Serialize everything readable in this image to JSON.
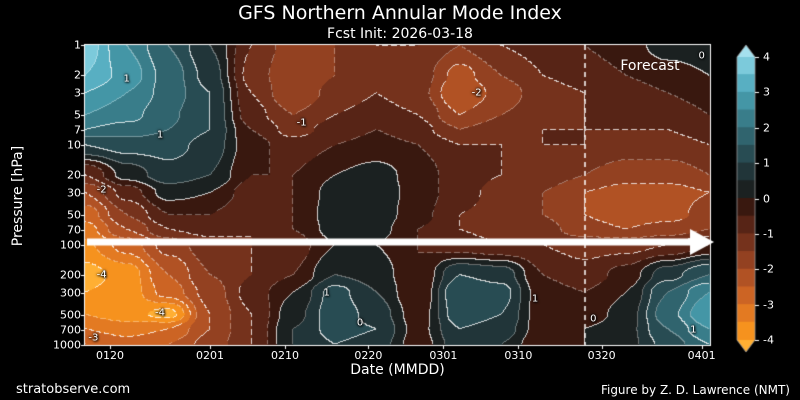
{
  "title": "GFS Northern Annular Mode Index",
  "subtitle": "Fcst Init: 2026-03-18",
  "footer": {
    "left": "stratobserve.com",
    "right": "Figure by Z. D. Lawrence (NMT)"
  },
  "axes": {
    "x_label": "Date (MMDD)",
    "y_label": "Pressure [hPa]",
    "x_ticks": [
      {
        "label": "0120",
        "day": 3
      },
      {
        "label": "0201",
        "day": 15
      },
      {
        "label": "0210",
        "day": 24
      },
      {
        "label": "0220",
        "day": 34
      },
      {
        "label": "0301",
        "day": 43
      },
      {
        "label": "0310",
        "day": 52
      },
      {
        "label": "0320",
        "day": 62
      },
      {
        "label": "0401",
        "day": 74
      }
    ],
    "y_ticks": [
      1,
      2,
      3,
      5,
      7,
      10,
      20,
      30,
      50,
      70,
      100,
      200,
      300,
      500,
      700,
      1000
    ]
  },
  "forecast": {
    "label": "Forecast",
    "init_day": 60
  },
  "arrow": {
    "pressure": 100
  },
  "colorbar": {
    "ticks": [
      4,
      3,
      2,
      1,
      0,
      -1,
      -2,
      -3,
      -4
    ],
    "min": -4,
    "max": 4
  },
  "colormap": {
    "band_edges": [
      -4,
      -3.5,
      -3,
      -2.5,
      -2,
      -1.5,
      -1,
      -0.5,
      0,
      0.5,
      1,
      1.5,
      2,
      2.5,
      3,
      3.5,
      4
    ],
    "band_colors": [
      "#ffaf33",
      "#f6921e",
      "#e37a22",
      "#cc6424",
      "#b15224",
      "#934121",
      "#75321c",
      "#572416",
      "#39180f",
      "#1b2121",
      "#213539",
      "#284c53",
      "#30646e",
      "#397d8a",
      "#4496a6",
      "#58afc2",
      "#7ccadb",
      "#a5e0ee"
    ]
  },
  "chart_data": {
    "type": "heatmap",
    "title": "GFS Northern Annular Mode Index",
    "x_start_date": "0117",
    "x_range_days": [
      0,
      75
    ],
    "y_scale": "log",
    "y_range_hpa": [
      1,
      1000
    ],
    "value_range": [
      -4,
      4
    ],
    "x_days": [
      0,
      5,
      10,
      15,
      20,
      25,
      30,
      35,
      40,
      45,
      50,
      55,
      60,
      65,
      70,
      75
    ],
    "pressure_levels": [
      1,
      2,
      3,
      5,
      7,
      10,
      20,
      30,
      50,
      70,
      100,
      200,
      300,
      500,
      700,
      1000
    ],
    "values": [
      [
        3.8,
        2.5,
        1.5,
        0.5,
        -1.0,
        -1.8,
        -1.5,
        -1.0,
        -1.0,
        -1.5,
        -1.0,
        -0.8,
        -0.5,
        -0.2,
        0.2,
        0.3
      ],
      [
        3.5,
        2.8,
        1.8,
        0.8,
        -1.2,
        -2.0,
        -1.5,
        -1.2,
        -1.2,
        -2.2,
        -1.5,
        -1.0,
        -0.8,
        -0.5,
        -0.2,
        0.0
      ],
      [
        3.0,
        2.5,
        1.8,
        1.0,
        -1.0,
        -2.0,
        -1.3,
        -1.0,
        -1.3,
        -2.5,
        -1.8,
        -1.2,
        -1.0,
        -0.8,
        -0.5,
        -0.3
      ],
      [
        2.5,
        2.2,
        1.6,
        1.0,
        -0.8,
        -1.5,
        -1.0,
        -0.8,
        -1.0,
        -2.0,
        -1.5,
        -1.2,
        -1.0,
        -1.0,
        -0.8,
        -0.5
      ],
      [
        2.0,
        1.8,
        1.5,
        1.0,
        -0.5,
        -1.2,
        -0.8,
        -0.5,
        -0.8,
        -1.5,
        -1.2,
        -1.0,
        -1.0,
        -1.0,
        -1.0,
        -0.8
      ],
      [
        1.0,
        1.2,
        1.2,
        0.8,
        -0.3,
        -0.8,
        -0.5,
        -0.3,
        -0.5,
        -1.0,
        -1.0,
        -1.0,
        -1.0,
        -1.2,
        -1.2,
        -1.0
      ],
      [
        -1.0,
        0.2,
        0.8,
        0.5,
        -0.5,
        -0.5,
        0.0,
        0.2,
        -0.2,
        -0.8,
        -1.0,
        -1.2,
        -1.5,
        -1.8,
        -1.8,
        -1.5
      ],
      [
        -2.0,
        -0.8,
        0.2,
        0.0,
        -0.8,
        -0.5,
        0.2,
        0.3,
        -0.2,
        -0.8,
        -1.2,
        -1.5,
        -2.0,
        -2.2,
        -2.2,
        -2.0
      ],
      [
        -2.8,
        -1.5,
        -0.5,
        -0.5,
        -1.0,
        -0.5,
        0.3,
        0.3,
        -0.3,
        -1.0,
        -1.2,
        -1.5,
        -2.0,
        -2.3,
        -2.2,
        -1.8
      ],
      [
        -3.2,
        -2.0,
        -1.0,
        -0.8,
        -1.0,
        -0.5,
        0.2,
        0.2,
        -0.5,
        -1.0,
        -1.2,
        -1.3,
        -1.8,
        -2.0,
        -1.8,
        -1.5
      ],
      [
        -3.6,
        -2.8,
        -1.8,
        -1.2,
        -1.0,
        -0.8,
        0.0,
        0.0,
        -0.5,
        -0.8,
        -1.0,
        -1.0,
        -1.2,
        -1.2,
        -1.0,
        -0.5
      ],
      [
        -4.2,
        -3.8,
        -2.5,
        -1.5,
        -1.0,
        -0.5,
        0.5,
        0.3,
        -0.5,
        1.0,
        0.8,
        -0.5,
        -0.8,
        -0.3,
        0.8,
        1.5
      ],
      [
        -4.0,
        -3.8,
        -2.8,
        -1.8,
        -0.8,
        0.0,
        1.2,
        0.5,
        -0.5,
        1.5,
        1.2,
        -0.3,
        -0.5,
        0.0,
        1.5,
        2.5
      ],
      [
        -3.5,
        -3.8,
        -4.2,
        -2.0,
        -1.0,
        0.3,
        1.3,
        0.8,
        -0.3,
        1.3,
        1.0,
        -0.3,
        -0.3,
        0.2,
        1.8,
        3.0
      ],
      [
        -3.0,
        -3.2,
        -3.0,
        -2.0,
        -1.0,
        0.5,
        1.2,
        1.0,
        -0.2,
        1.0,
        0.8,
        -0.3,
        0.0,
        0.3,
        1.5,
        2.5
      ],
      [
        -2.5,
        -2.8,
        -2.5,
        -1.8,
        -1.0,
        0.5,
        1.0,
        0.8,
        -0.3,
        0.8,
        0.5,
        -0.5,
        0.0,
        0.3,
        1.2,
        2.0
      ]
    ],
    "contour_labels": [
      {
        "text": "1",
        "day": 5,
        "p": 2.2
      },
      {
        "text": "1",
        "day": 9,
        "p": 8
      },
      {
        "text": "-2",
        "day": 2,
        "p": 28
      },
      {
        "text": "-4",
        "day": 2,
        "p": 200
      },
      {
        "text": "-3",
        "day": 1,
        "p": 850
      },
      {
        "text": "-4",
        "day": 9,
        "p": 480
      },
      {
        "text": "-1",
        "day": 26,
        "p": 6
      },
      {
        "text": "-2",
        "day": 47,
        "p": 3
      },
      {
        "text": "1",
        "day": 29,
        "p": 300
      },
      {
        "text": "0",
        "day": 33,
        "p": 600
      },
      {
        "text": "1",
        "day": 54,
        "p": 350
      },
      {
        "text": "0",
        "day": 61,
        "p": 550
      },
      {
        "text": "0",
        "day": 74,
        "p": 1.3
      },
      {
        "text": "1",
        "day": 73,
        "p": 700
      }
    ]
  }
}
